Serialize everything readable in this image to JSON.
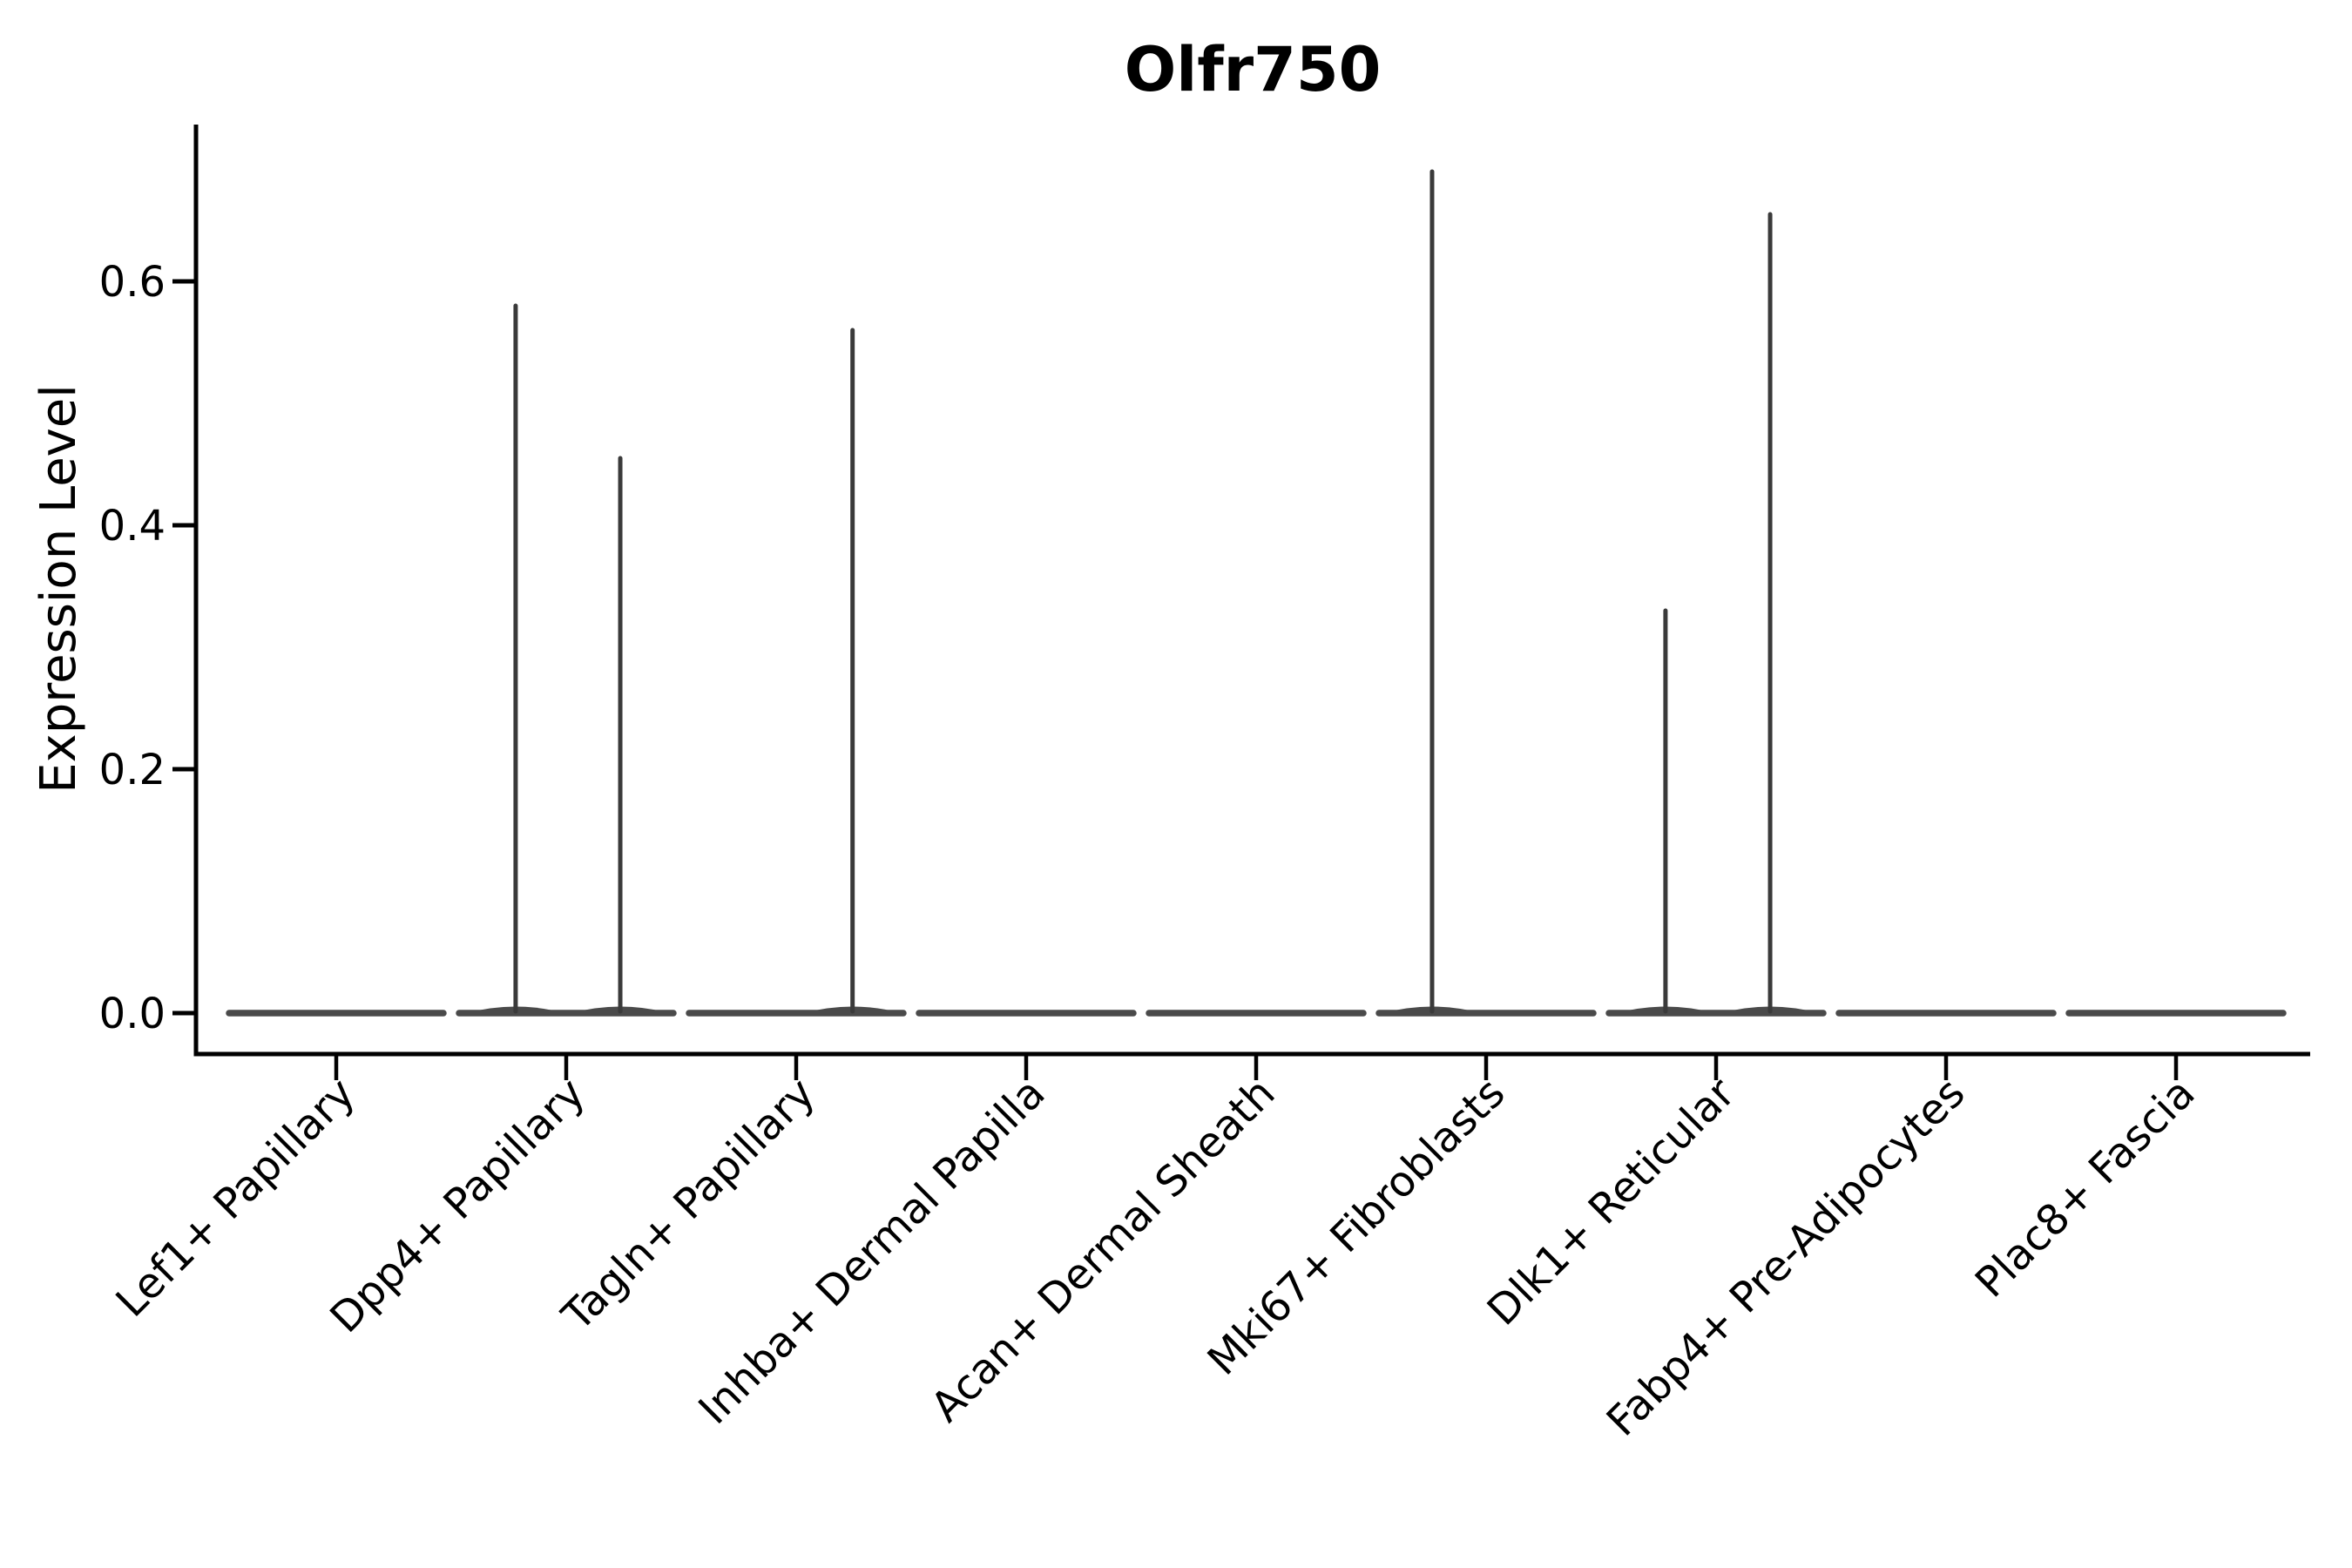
{
  "title": "Olfr750",
  "ylabel": "Expression Level",
  "chart_data": {
    "type": "violin",
    "title": "Olfr750",
    "xlabel": "",
    "ylabel": "Expression Level",
    "ytick_labels": [
      "0.0",
      "0.2",
      "0.4",
      "0.6"
    ],
    "ytick_values": [
      0.0,
      0.2,
      0.4,
      0.6
    ],
    "ylim": [
      -0.033,
      0.727
    ],
    "legend": "none",
    "grid": false,
    "categories": [
      "Lef1+ Papillary",
      "Dpp4+ Papillary",
      "Tagln+ Papillary",
      "Inhba+ Dermal Papilla",
      "Acan+ Dermal Sheath",
      "Mki67+ Fibroblasts",
      "Dlk1+ Reticular",
      "Fabp4+ Pre-Adipocytes",
      "Plac8+ Fascia"
    ],
    "series": [
      {
        "name": "Lef1+ Papillary",
        "baseline_value": 0.0,
        "spikes": []
      },
      {
        "name": "Dpp4+ Papillary",
        "baseline_value": 0.0,
        "spikes": [
          {
            "rel_x": -0.22,
            "value": 0.58
          },
          {
            "rel_x": 0.235,
            "value": 0.455
          }
        ]
      },
      {
        "name": "Tagln+ Papillary",
        "baseline_value": 0.0,
        "spikes": [
          {
            "rel_x": 0.245,
            "value": 0.56
          }
        ]
      },
      {
        "name": "Inhba+ Dermal Papilla",
        "baseline_value": 0.0,
        "spikes": []
      },
      {
        "name": "Acan+ Dermal Sheath",
        "baseline_value": 0.0,
        "spikes": []
      },
      {
        "name": "Mki67+ Fibroblasts",
        "baseline_value": 0.0,
        "spikes": [
          {
            "rel_x": -0.235,
            "value": 0.69
          }
        ]
      },
      {
        "name": "Dlk1+ Reticular",
        "baseline_value": 0.0,
        "spikes": [
          {
            "rel_x": -0.22,
            "value": 0.33
          },
          {
            "rel_x": 0.235,
            "value": 0.655
          }
        ]
      },
      {
        "name": "Fabp4+ Pre-Adipocytes",
        "baseline_value": 0.0,
        "spikes": []
      },
      {
        "name": "Plac8+ Fascia",
        "baseline_value": 0.0,
        "spikes": []
      }
    ],
    "style": {
      "background": "#ffffff",
      "axis_color": "#000000",
      "text_color": "#000000",
      "violin_body_color": "#4a4a4a",
      "violin_spike_color": "#3a3a3a"
    }
  }
}
